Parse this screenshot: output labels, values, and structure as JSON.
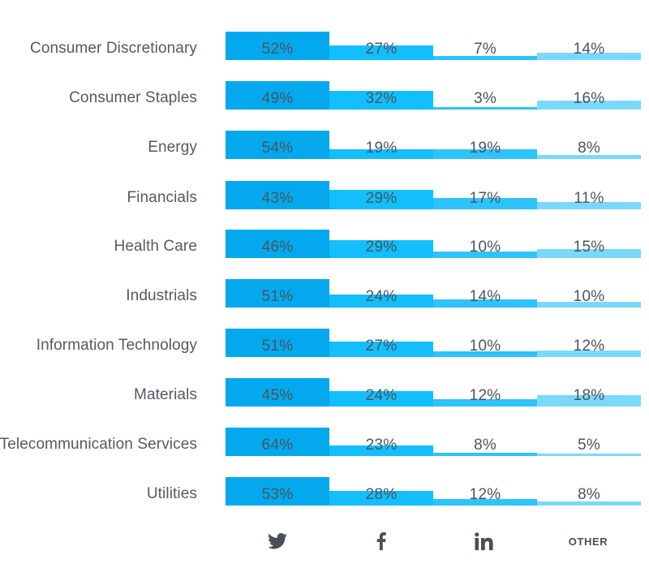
{
  "chart_data": {
    "type": "bar",
    "orientation": "vertical-per-row",
    "normalization": "each row scaled to its own maximum",
    "title": "",
    "xlabel": "",
    "ylabel": "",
    "grid": false,
    "value_format": "{v}%",
    "series": [
      {
        "name": "Twitter",
        "icon": "twitter-icon",
        "color": "#03A9EC",
        "values": [
          52,
          49,
          54,
          43,
          46,
          51,
          51,
          45,
          64,
          53
        ]
      },
      {
        "name": "Facebook",
        "icon": "facebook-icon",
        "color": "#12BEFC",
        "values": [
          27,
          32,
          19,
          29,
          29,
          24,
          27,
          24,
          23,
          28
        ]
      },
      {
        "name": "LinkedIn",
        "icon": "linkedin-icon",
        "color": "#2EC3FA",
        "values": [
          7,
          3,
          19,
          17,
          10,
          14,
          10,
          12,
          8,
          12
        ]
      },
      {
        "name": "Other",
        "label": "OTHER",
        "color": "#7AD9FB",
        "values": [
          14,
          16,
          8,
          11,
          15,
          10,
          12,
          18,
          5,
          8
        ]
      }
    ],
    "categories": [
      "Consumer Discretionary",
      "Consumer Staples",
      "Energy",
      "Financials",
      "Health Care",
      "Industrials",
      "Information Technology",
      "Materials",
      "Telecommunication Services",
      "Utilities"
    ]
  },
  "columns": {
    "other_label": "OTHER"
  }
}
